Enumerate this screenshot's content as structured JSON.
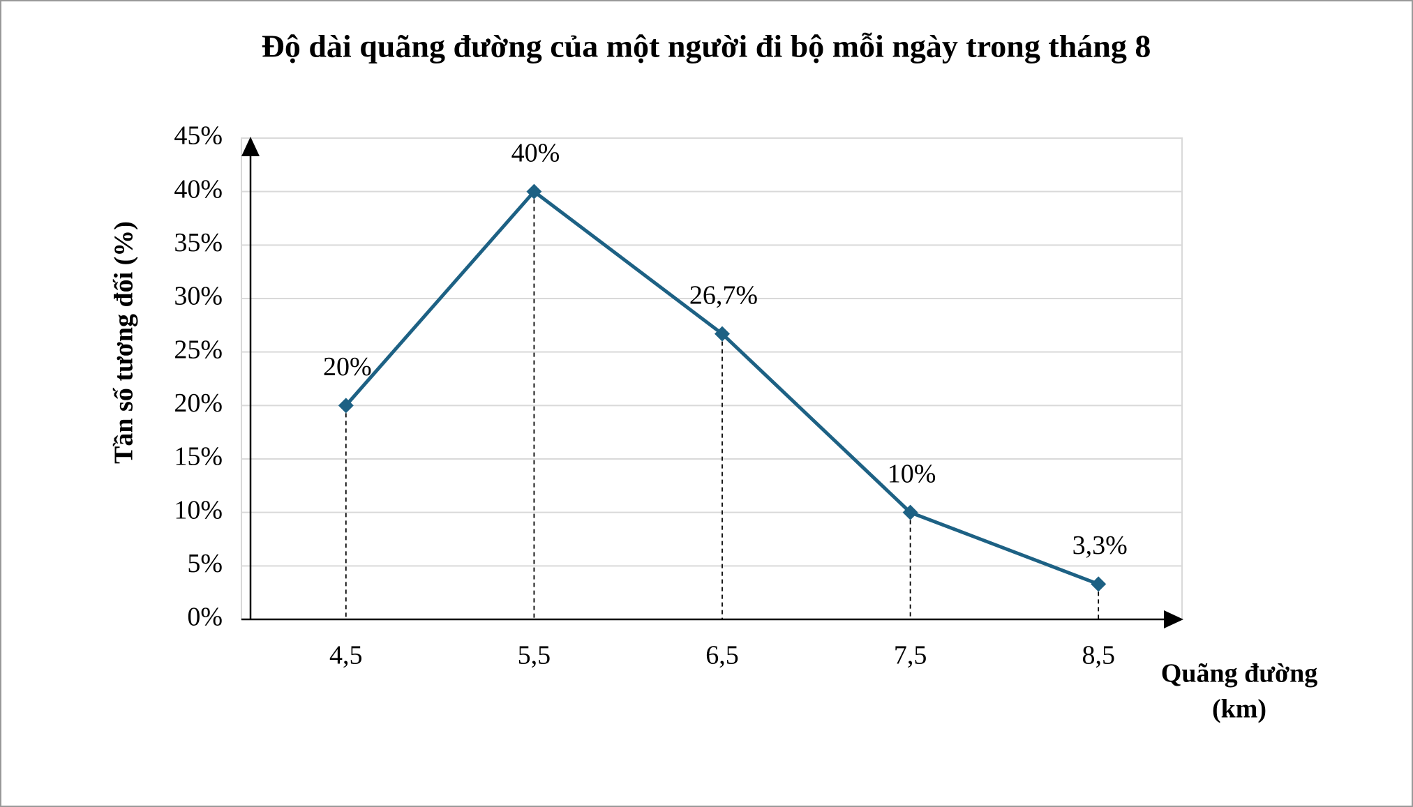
{
  "chart_data": {
    "type": "line",
    "title": "Độ dài quãng đường của một người đi bộ mỗi ngày trong tháng 8",
    "ylabel": "Tần số tương đối (%)",
    "xlabel_lines": [
      "Quãng đường",
      "(km)"
    ],
    "categories": [
      "4,5",
      "5,5",
      "6,5",
      "7,5",
      "8,5"
    ],
    "series": [
      {
        "color": "#1d6184",
        "values": [
          20,
          40,
          26.7,
          10,
          3.3
        ],
        "value_labels": [
          "20%",
          "40%",
          "26,7%",
          "10%",
          "3,3%"
        ]
      }
    ],
    "ylim": [
      0,
      45
    ],
    "yticks": [
      {
        "value": 0,
        "label": "0%"
      },
      {
        "value": 5,
        "label": "5%"
      },
      {
        "value": 10,
        "label": "10%"
      },
      {
        "value": 15,
        "label": "15%"
      },
      {
        "value": 20,
        "label": "20%"
      },
      {
        "value": 25,
        "label": "25%"
      },
      {
        "value": 30,
        "label": "30%"
      },
      {
        "value": 35,
        "label": "35%"
      },
      {
        "value": 40,
        "label": "40%"
      },
      {
        "value": 45,
        "label": "45%"
      }
    ],
    "grid": true
  }
}
